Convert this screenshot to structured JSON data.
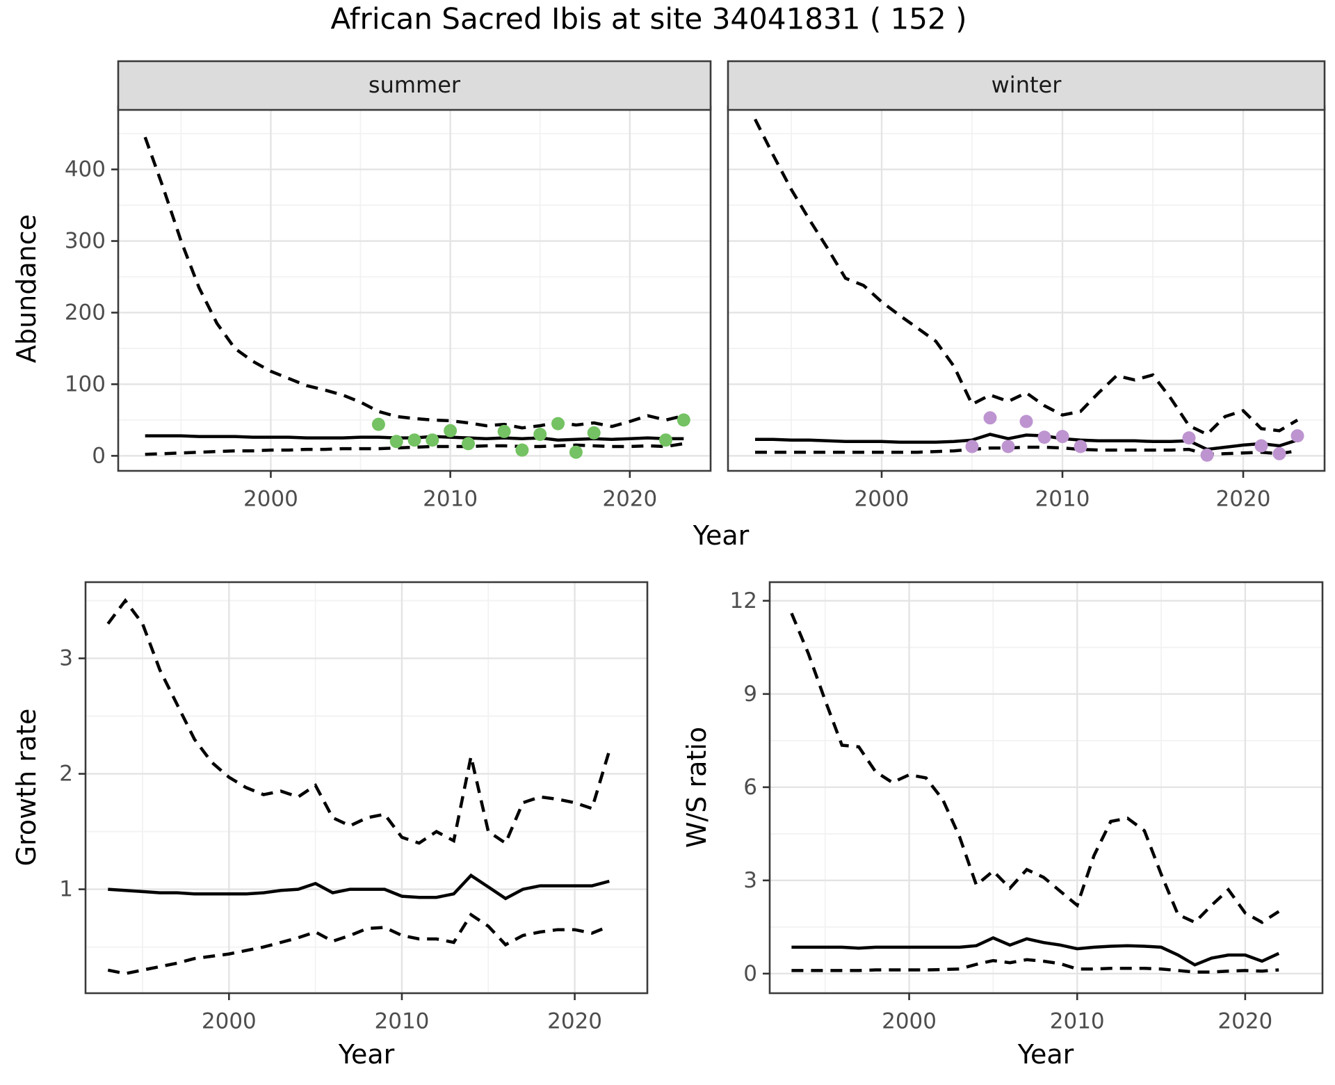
{
  "title": "African Sacred Ibis at site 34041831 ( 152 )",
  "axis_labels": {
    "top_y": "Abundance",
    "top_x": "Year",
    "growth_y": "Growth rate",
    "growth_x": "Year",
    "ws_y": "W/S ratio",
    "ws_x": "Year"
  },
  "style": {
    "summer_point_color": "#74C263",
    "winter_point_color": "#BD94D0",
    "line_color": "#000000",
    "strip_bg": "#DCDCDC",
    "panel_bg": "#FFFFFF",
    "panel_border": "#3B3B3B",
    "grid_major": "#E4E4E4",
    "grid_minor": "#F2F2F2",
    "tick_color": "#333333",
    "tick_label_color": "#4D4D4D"
  },
  "chart_data": [
    {
      "id": "abundance-summer",
      "type": "line",
      "title": "summer",
      "xlabel": "Year",
      "ylabel": "Abundance",
      "x_start": 1993,
      "xlim": [
        1991.5,
        2024.5
      ],
      "ylim": [
        -21,
        488
      ],
      "x_ticks": [
        2000,
        2010,
        2020
      ],
      "x_minor": [
        1995,
        2005,
        2015
      ],
      "y_ticks": [
        0,
        100,
        200,
        300,
        400
      ],
      "y_minor": [
        50,
        150,
        250,
        350,
        450
      ],
      "series": [
        {
          "name": "upper-95ci",
          "style": "dashed",
          "values": [
            445,
            375,
            300,
            235,
            185,
            150,
            132,
            118,
            108,
            98,
            92,
            85,
            75,
            62,
            55,
            52,
            50,
            49,
            46,
            42,
            44,
            39,
            42,
            47,
            43,
            46,
            41,
            48,
            56,
            50,
            56
          ]
        },
        {
          "name": "median",
          "style": "solid",
          "values": [
            28,
            28,
            28,
            27,
            27,
            27,
            26,
            26,
            26,
            25,
            25,
            25,
            26,
            26,
            25,
            25,
            27,
            26,
            25,
            24,
            25,
            24,
            25,
            22,
            23,
            24,
            23,
            24,
            25,
            24,
            24
          ]
        },
        {
          "name": "lower-95ci",
          "style": "dashed",
          "values": [
            2,
            3,
            4,
            5,
            6,
            7,
            7,
            8,
            8,
            9,
            9,
            10,
            10,
            10,
            11,
            12,
            13,
            13,
            13,
            14,
            14,
            13,
            13,
            14,
            15,
            14,
            13,
            13,
            14,
            13,
            17
          ]
        },
        {
          "name": "observed-counts",
          "style": "points",
          "color_key": "summer_point_color",
          "x": [
            2006,
            2007,
            2008,
            2009,
            2010,
            2011,
            2013,
            2014,
            2015,
            2016,
            2017,
            2018,
            2022,
            2023
          ],
          "values": [
            44,
            20,
            22,
            22,
            35,
            17,
            34,
            8,
            30,
            45,
            5,
            32,
            22,
            50
          ]
        }
      ]
    },
    {
      "id": "abundance-winter",
      "type": "line",
      "title": "winter",
      "xlabel": "Year",
      "ylabel": "Abundance",
      "x_start": 1993,
      "xlim": [
        1991.5,
        2024.5
      ],
      "ylim": [
        -21,
        488
      ],
      "x_ticks": [
        2000,
        2010,
        2020
      ],
      "x_minor": [
        1995,
        2005,
        2015
      ],
      "y_ticks": [
        0,
        100,
        200,
        300,
        400
      ],
      "y_minor": [
        50,
        150,
        250,
        350,
        450
      ],
      "series": [
        {
          "name": "upper-95ci",
          "style": "dashed",
          "values": [
            470,
            420,
            372,
            330,
            290,
            248,
            238,
            215,
            196,
            178,
            160,
            125,
            72,
            85,
            76,
            88,
            70,
            57,
            62,
            88,
            112,
            106,
            113,
            80,
            42,
            30,
            55,
            63,
            38,
            35,
            50
          ]
        },
        {
          "name": "median",
          "style": "solid",
          "values": [
            23,
            23,
            22,
            22,
            21,
            20,
            20,
            20,
            19,
            19,
            19,
            20,
            22,
            30,
            24,
            29,
            28,
            24,
            22,
            21,
            21,
            21,
            20,
            20,
            21,
            9,
            12,
            15,
            17,
            14,
            22
          ]
        },
        {
          "name": "lower-95ci",
          "style": "dashed",
          "values": [
            5,
            5,
            5,
            5,
            5,
            5,
            5,
            5,
            5,
            5,
            6,
            7,
            9,
            11,
            11,
            12,
            12,
            11,
            9,
            8,
            8,
            8,
            8,
            8,
            9,
            2,
            3,
            4,
            5,
            3,
            7
          ]
        },
        {
          "name": "observed-counts",
          "style": "points",
          "color_key": "winter_point_color",
          "x": [
            2005,
            2006,
            2007,
            2008,
            2009,
            2010,
            2011,
            2017,
            2018,
            2021,
            2022,
            2023
          ],
          "values": [
            13,
            53,
            13,
            48,
            26,
            27,
            13,
            25,
            1,
            14,
            3,
            28
          ]
        }
      ]
    },
    {
      "id": "growth",
      "type": "line",
      "title": "",
      "xlabel": "Year",
      "ylabel": "Growth rate",
      "x_start": 1993,
      "xlim": [
        1991.7,
        2024.2
      ],
      "ylim": [
        0.1,
        3.66
      ],
      "x_ticks": [
        2000,
        2010,
        2020
      ],
      "x_minor": [
        1995,
        2005,
        2015
      ],
      "y_ticks": [
        1,
        2,
        3
      ],
      "y_minor": [
        0.5,
        1.5,
        2.5,
        3.5
      ],
      "series": [
        {
          "name": "upper-95ci",
          "style": "dashed",
          "values": [
            3.3,
            3.5,
            3.3,
            2.9,
            2.6,
            2.3,
            2.1,
            1.97,
            1.88,
            1.82,
            1.85,
            1.8,
            1.9,
            1.62,
            1.55,
            1.62,
            1.65,
            1.45,
            1.4,
            1.5,
            1.42,
            2.15,
            1.5,
            1.4,
            1.75,
            1.8,
            1.78,
            1.75,
            1.7,
            2.2
          ]
        },
        {
          "name": "median",
          "style": "solid",
          "values": [
            1.0,
            0.99,
            0.98,
            0.97,
            0.97,
            0.96,
            0.96,
            0.96,
            0.96,
            0.97,
            0.99,
            1.0,
            1.05,
            0.97,
            1.0,
            1.0,
            1.0,
            0.94,
            0.93,
            0.93,
            0.96,
            1.12,
            1.02,
            0.92,
            1.0,
            1.03,
            1.03,
            1.03,
            1.03,
            1.07
          ]
        },
        {
          "name": "lower-95ci",
          "style": "dashed",
          "values": [
            0.3,
            0.27,
            0.3,
            0.33,
            0.36,
            0.4,
            0.42,
            0.44,
            0.47,
            0.5,
            0.54,
            0.58,
            0.63,
            0.55,
            0.6,
            0.66,
            0.67,
            0.6,
            0.57,
            0.57,
            0.54,
            0.78,
            0.68,
            0.52,
            0.6,
            0.63,
            0.65,
            0.65,
            0.62,
            0.68
          ]
        }
      ]
    },
    {
      "id": "ws",
      "type": "line",
      "title": "",
      "xlabel": "Year",
      "ylabel": "W/S ratio",
      "x_start": 1993,
      "xlim": [
        1991.7,
        2024.6
      ],
      "ylim": [
        -0.63,
        12.6
      ],
      "x_ticks": [
        2000,
        2010,
        2020
      ],
      "x_minor": [
        1995,
        2005,
        2015
      ],
      "y_ticks": [
        0,
        3,
        6,
        9,
        12
      ],
      "y_minor": [
        1.5,
        4.5,
        7.5,
        10.5
      ],
      "series": [
        {
          "name": "upper-95ci",
          "style": "dashed",
          "values": [
            11.6,
            10.3,
            8.8,
            7.35,
            7.3,
            6.5,
            6.15,
            6.4,
            6.3,
            5.6,
            4.4,
            2.85,
            3.3,
            2.75,
            3.35,
            3.1,
            2.65,
            2.2,
            3.8,
            4.9,
            5.0,
            4.6,
            3.2,
            1.9,
            1.65,
            2.2,
            2.7,
            1.95,
            1.65,
            2.0
          ]
        },
        {
          "name": "median",
          "style": "solid",
          "values": [
            0.85,
            0.85,
            0.85,
            0.85,
            0.82,
            0.85,
            0.85,
            0.85,
            0.85,
            0.85,
            0.85,
            0.9,
            1.15,
            0.92,
            1.12,
            1.0,
            0.92,
            0.8,
            0.85,
            0.88,
            0.9,
            0.88,
            0.85,
            0.6,
            0.28,
            0.5,
            0.6,
            0.6,
            0.4,
            0.65
          ]
        },
        {
          "name": "lower-95ci",
          "style": "dashed",
          "values": [
            0.1,
            0.1,
            0.1,
            0.1,
            0.1,
            0.12,
            0.12,
            0.12,
            0.12,
            0.13,
            0.15,
            0.3,
            0.42,
            0.35,
            0.45,
            0.4,
            0.32,
            0.15,
            0.15,
            0.17,
            0.17,
            0.17,
            0.15,
            0.1,
            0.05,
            0.05,
            0.08,
            0.1,
            0.08,
            0.12
          ]
        }
      ]
    }
  ]
}
